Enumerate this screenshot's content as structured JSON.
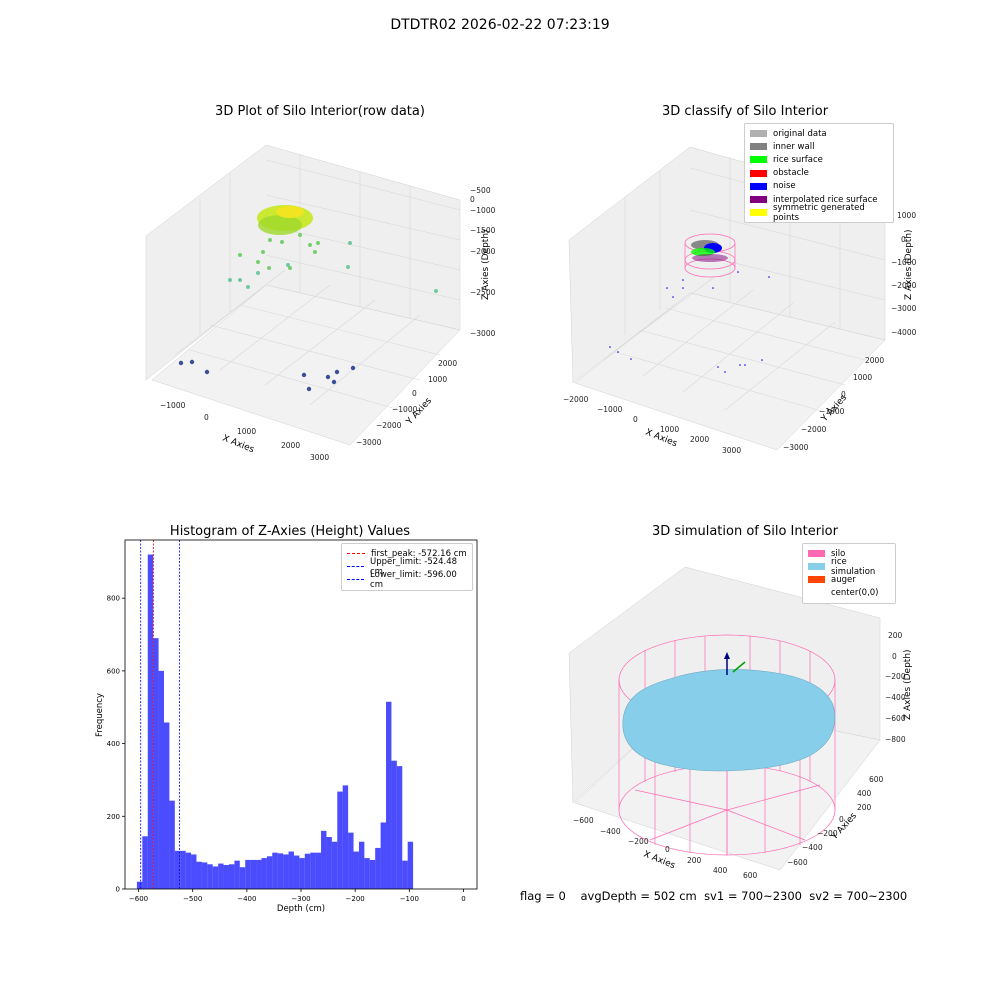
{
  "figure_title": "DTDTR02 2026-02-22 07:23:19",
  "footer": {
    "flag": "flag = 0",
    "avg_depth": "avgDepth = 502 cm",
    "sv1": "sv1 = 700~2300",
    "sv2": "sv2 = 700~2300"
  },
  "panels": {
    "raw": {
      "title": "3D Plot of Silo Interior(row data)",
      "xlabel": "X Axies",
      "ylabel": "Y Axies",
      "zlabel": "Z Axies (Depth)",
      "x_ticks": [
        "−1000",
        "0",
        "1000",
        "2000",
        "3000"
      ],
      "y_ticks": [
        "−3000",
        "−2000",
        "−1000",
        "0",
        "1000",
        "2000"
      ],
      "z_ticks": [
        "−3000",
        "−2500",
        "−2000",
        "−1500",
        "−1000",
        "−500",
        "0"
      ]
    },
    "classify": {
      "title": "3D classify of Silo Interior",
      "xlabel": "X Axies",
      "ylabel": "Y Axies",
      "zlabel": "Z Axies (Depth)",
      "x_ticks": [
        "−2000",
        "−1000",
        "0",
        "1000",
        "2000",
        "3000"
      ],
      "y_ticks": [
        "−3000",
        "−2000",
        "−1000",
        "0",
        "1000",
        "2000"
      ],
      "z_ticks": [
        "−4000",
        "−3000",
        "−2000",
        "−1000",
        "0",
        "1000"
      ],
      "legend": [
        {
          "label": "original data",
          "color": "#b0b0b0"
        },
        {
          "label": "inner wall",
          "color": "#808080"
        },
        {
          "label": "rice surface",
          "color": "#00ff00"
        },
        {
          "label": "obstacle",
          "color": "#ff0000"
        },
        {
          "label": "noise",
          "color": "#0000ff"
        },
        {
          "label": "interpolated rice surface",
          "color": "#800080"
        },
        {
          "label": "symmetric generated points",
          "color": "#ffff00"
        }
      ]
    },
    "histogram": {
      "title": "Histogram of Z-Axies (Height) Values",
      "xlabel": "Depth (cm)",
      "ylabel": "Frequency",
      "legend": [
        {
          "label": "first_peak: -572.16 cm",
          "color": "#ff0000"
        },
        {
          "label": "Upper_limit: -524.48 cm",
          "color": "#0000ff"
        },
        {
          "label": "Lower_limit: -596.00 cm",
          "color": "#0000ff"
        }
      ]
    },
    "simulation": {
      "title": "3D simulation of Silo Interior",
      "xlabel": "X Axies",
      "ylabel": "Y Axies",
      "zlabel": "Z Axies (Depth)",
      "x_ticks": [
        "−600",
        "−400",
        "−200",
        "0",
        "200",
        "400",
        "600"
      ],
      "y_ticks": [
        "−600",
        "−400",
        "−200",
        "0",
        "200",
        "400",
        "600"
      ],
      "z_ticks": [
        "−800",
        "−600",
        "−400",
        "−200",
        "0",
        "200"
      ],
      "legend": [
        {
          "label": "silo",
          "color": "#ff69b4"
        },
        {
          "label": "rice simulation",
          "color": "#87ceeb"
        },
        {
          "label": "auger",
          "color": "#ff4500"
        },
        {
          "label": "center(0,0)",
          "color": "#ffffff"
        }
      ]
    }
  },
  "chart_data": [
    {
      "type": "histogram",
      "title": "Histogram of Z-Axies (Height) Values",
      "xlabel": "Depth (cm)",
      "ylabel": "Frequency",
      "xlim": [
        -625,
        25
      ],
      "ylim": [
        0,
        960
      ],
      "x_ticks": [
        -600,
        -500,
        -400,
        -300,
        -200,
        -100,
        0
      ],
      "y_ticks": [
        0,
        200,
        400,
        600,
        800
      ],
      "bin_width": 10,
      "bin_start": -603,
      "counts": [
        20,
        145,
        920,
        690,
        600,
        458,
        243,
        105,
        105,
        100,
        95,
        75,
        73,
        68,
        62,
        70,
        66,
        68,
        78,
        60,
        80,
        80,
        80,
        85,
        90,
        100,
        98,
        95,
        103,
        92,
        85,
        97,
        100,
        100,
        160,
        143,
        130,
        268,
        285,
        155,
        103,
        130,
        85,
        80,
        113,
        183,
        515,
        353,
        338,
        78,
        130
      ],
      "color": "#0000ff",
      "vlines": [
        {
          "label": "first_peak: -572.16 cm",
          "x": -572.16,
          "color": "#ff0000"
        },
        {
          "label": "Upper_limit: -524.48 cm",
          "x": -524.48,
          "color": "#0000ff"
        },
        {
          "label": "Lower_limit: -596.00 cm",
          "x": -596.0,
          "color": "#0000ff"
        }
      ]
    }
  ]
}
